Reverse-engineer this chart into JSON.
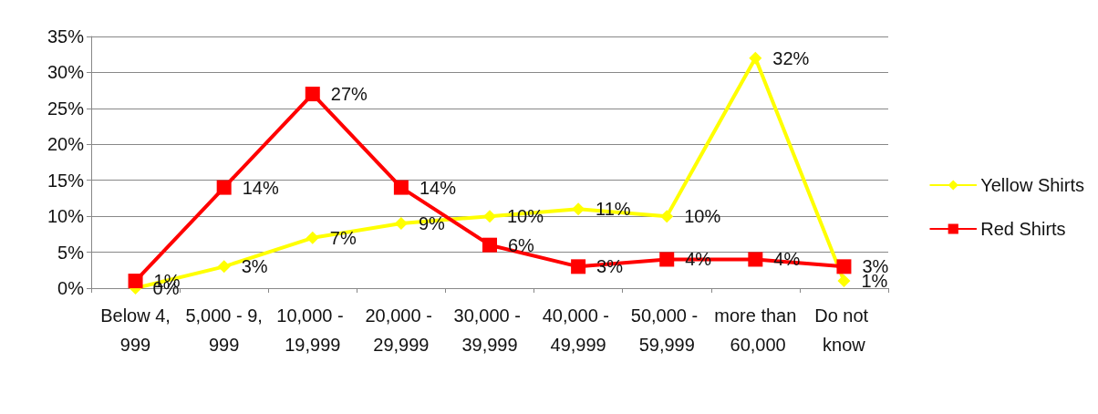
{
  "chart_data": {
    "type": "line",
    "categories": [
      "Below 4,999",
      "5,000 - 9,999",
      "10,000 - 19,999",
      "20,000 - 29,999",
      "30,000 - 39,999",
      "40,000 - 49,999",
      "50,000 - 59,999",
      "more than 60,000",
      "Do not know"
    ],
    "series": [
      {
        "name": "Yellow Shirts",
        "color": "#ffff00",
        "marker": "diamond",
        "values": [
          0,
          3,
          7,
          9,
          10,
          11,
          10,
          32,
          1
        ],
        "value_labels": [
          "0%",
          "3%",
          "7%",
          "9%",
          "10%",
          "11%",
          "10%",
          "32%",
          "1%"
        ]
      },
      {
        "name": "Red Shirts",
        "color": "#ff0000",
        "marker": "square",
        "values": [
          1,
          14,
          27,
          14,
          6,
          3,
          4,
          4,
          3
        ],
        "value_labels": [
          "1%",
          "14%",
          "27%",
          "14%",
          "6%",
          "3%",
          "4%",
          "4%",
          "3%"
        ]
      }
    ],
    "ylim": [
      0,
      35
    ],
    "yticks": [
      {
        "value": 0,
        "label": "0%"
      },
      {
        "value": 5,
        "label": "5%"
      },
      {
        "value": 10,
        "label": "10%"
      },
      {
        "value": 15,
        "label": "15%"
      },
      {
        "value": 20,
        "label": "20%"
      },
      {
        "value": 25,
        "label": "25%"
      },
      {
        "value": 30,
        "label": "30%"
      },
      {
        "value": 35,
        "label": "35%"
      }
    ],
    "grid": "y",
    "legend": "right",
    "line_style": "solid"
  }
}
